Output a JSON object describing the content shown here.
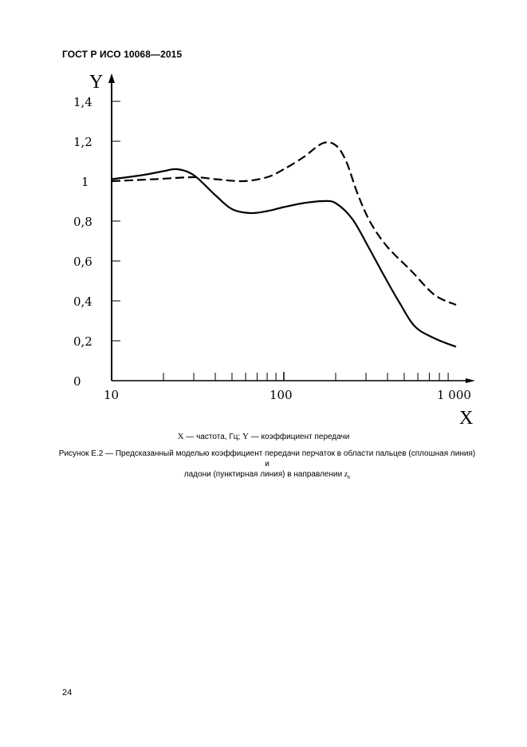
{
  "header": {
    "title": "ГОСТ Р ИСО 10068—2015"
  },
  "chart_data": {
    "type": "line",
    "title": "",
    "xlabel": "X",
    "ylabel": "Y",
    "x_scale": "log",
    "xlim": [
      10,
      1000
    ],
    "ylim": [
      0,
      1.4
    ],
    "grid": false,
    "x_tick_labels": [
      "10",
      "100",
      "1 000"
    ],
    "y_tick_labels": [
      "0",
      "0,2",
      "0,4",
      "0,6",
      "0,8",
      "1",
      "1,2",
      "1,4"
    ],
    "y_ticks": [
      0,
      0.2,
      0.4,
      0.6,
      0.8,
      1.0,
      1.2,
      1.4
    ],
    "x_minor_ticks": [
      20,
      30,
      40,
      50,
      60,
      70,
      80,
      90,
      200,
      300,
      400,
      500,
      600,
      700,
      800,
      900
    ],
    "legend": [],
    "series": [
      {
        "name": "пальцы (сплошная линия)",
        "style": "solid",
        "x": [
          10,
          15,
          20,
          24,
          30,
          40,
          50,
          64,
          80,
          100,
          130,
          168,
          200,
          250,
          310,
          380,
          470,
          580,
          760,
          1000
        ],
        "y": [
          1.01,
          1.03,
          1.05,
          1.06,
          1.03,
          0.93,
          0.86,
          0.84,
          0.85,
          0.87,
          0.89,
          0.9,
          0.89,
          0.81,
          0.67,
          0.53,
          0.39,
          0.27,
          0.21,
          0.17
        ]
      },
      {
        "name": "ладонь (пунктирная линия)",
        "style": "dashed",
        "x": [
          10,
          18,
          30,
          40,
          58,
          80,
          100,
          130,
          168,
          200,
          230,
          270,
          320,
          400,
          550,
          750,
          1000
        ],
        "y": [
          1.0,
          1.01,
          1.02,
          1.01,
          1.0,
          1.02,
          1.06,
          1.12,
          1.19,
          1.18,
          1.1,
          0.93,
          0.79,
          0.67,
          0.55,
          0.43,
          0.38
        ]
      }
    ]
  },
  "legend_text": {
    "x_sym": "X",
    "x_desc": " — частота, Гц; ",
    "y_sym": "Y",
    "y_desc": " — коэффициент передачи"
  },
  "caption": {
    "line1": "Рисунок Е.2 — Предсказанный моделью коэффициент передачи перчаток в области пальцев (сплошная линия) и",
    "line2": "ладони (пунктирная линия) в направлении ",
    "line2_symbol": "zh"
  },
  "footer": {
    "page_number": "24"
  }
}
